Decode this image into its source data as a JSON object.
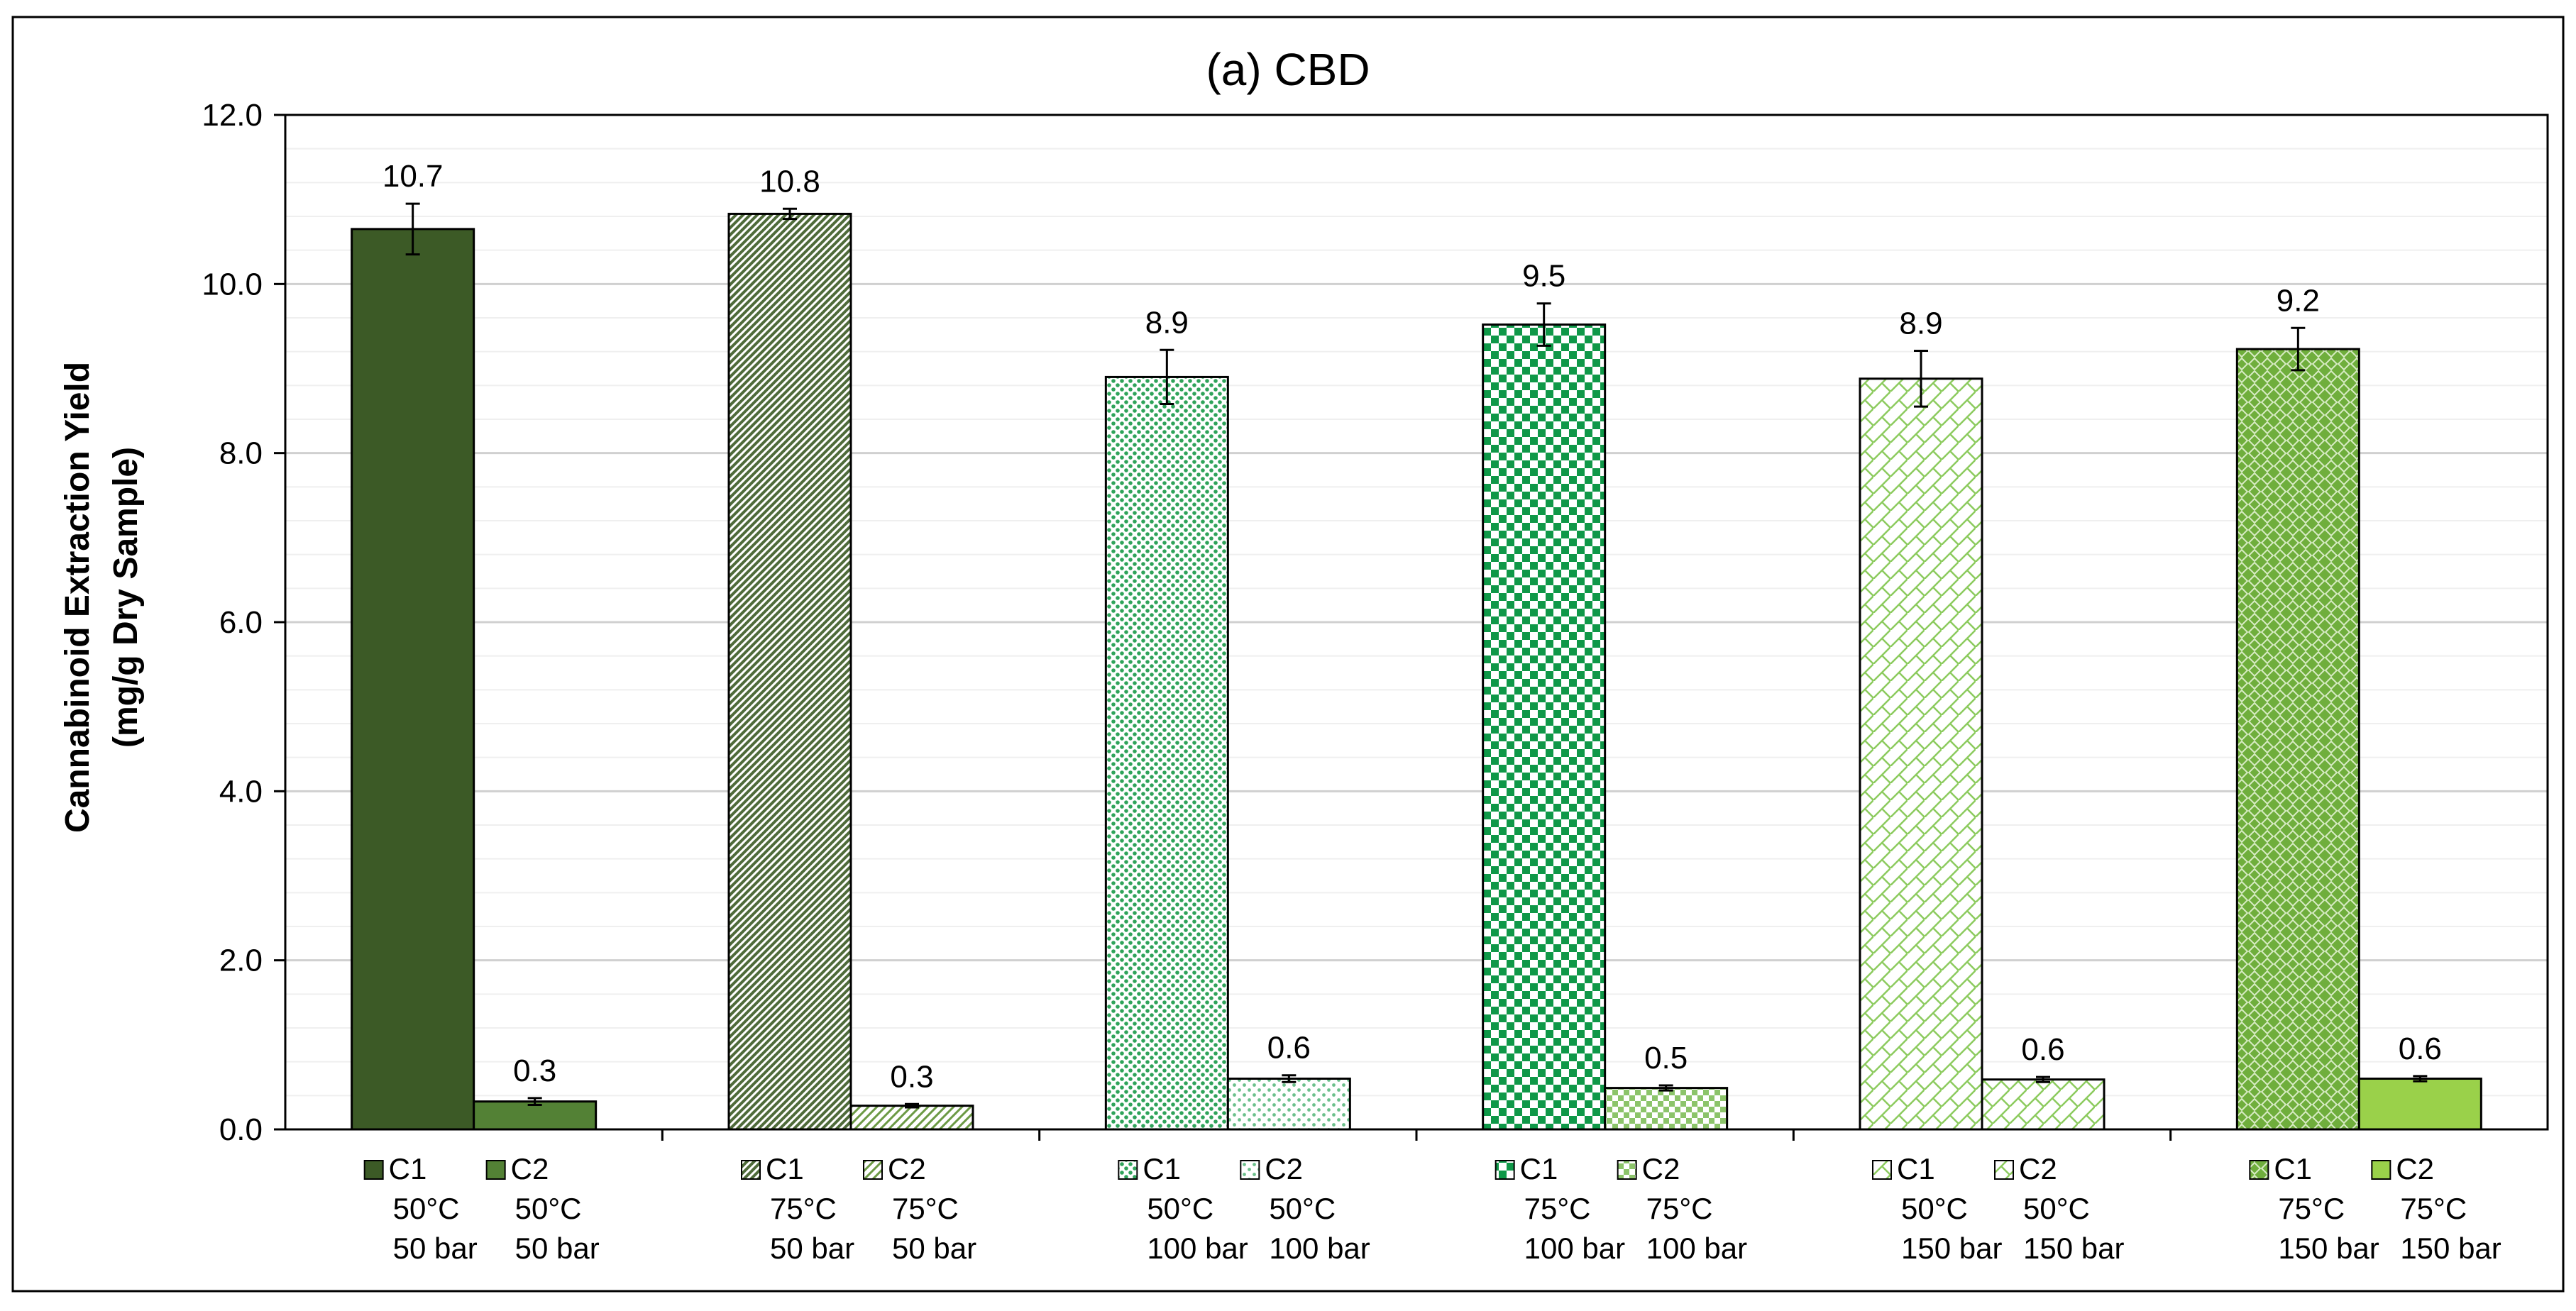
{
  "chart_data": {
    "type": "bar",
    "title": "(a) CBD",
    "ylabel_line1": "Cannabinoid Extraction Yield",
    "ylabel_line2": "(mg/g Dry Sample)",
    "ylim": [
      0,
      12
    ],
    "y_ticks": [
      "0.0",
      "2.0",
      "4.0",
      "6.0",
      "8.0",
      "10.0",
      "12.0"
    ],
    "grid": true,
    "groups": [
      {
        "bars": [
          {
            "label": [
              "C1",
              "50°C",
              "50 bar"
            ],
            "value": 10.65,
            "error": 0.3,
            "data_label": "10.7",
            "color": "#3c5a26",
            "pattern": "solid"
          },
          {
            "label": [
              "C2",
              "50°C",
              "50 bar"
            ],
            "value": 0.33,
            "error": 0.04,
            "data_label": "0.3",
            "color": "#538135",
            "pattern": "solid"
          }
        ]
      },
      {
        "bars": [
          {
            "label": [
              "C1",
              "75°C",
              "50 bar"
            ],
            "value": 10.83,
            "error": 0.06,
            "data_label": "10.8",
            "color": "#4f6b3a",
            "pattern": "diagonal-dense"
          },
          {
            "label": [
              "C2",
              "75°C",
              "50 bar"
            ],
            "value": 0.28,
            "error": 0.02,
            "data_label": "0.3",
            "color": "#6c9a45",
            "pattern": "diagonal-light"
          }
        ]
      },
      {
        "bars": [
          {
            "label": [
              "C1",
              "50°C",
              "100 bar"
            ],
            "value": 8.9,
            "error": 0.32,
            "data_label": "8.9",
            "color": "#2fa35a",
            "pattern": "dots-dense"
          },
          {
            "label": [
              "C2",
              "50°C",
              "100 bar"
            ],
            "value": 0.6,
            "error": 0.04,
            "data_label": "0.6",
            "color": "#6cc08b",
            "pattern": "dots-light"
          }
        ]
      },
      {
        "bars": [
          {
            "label": [
              "C1",
              "75°C",
              "100 bar"
            ],
            "value": 9.52,
            "error": 0.25,
            "data_label": "9.5",
            "color": "#0f9848",
            "pattern": "checker"
          },
          {
            "label": [
              "C2",
              "75°C",
              "100 bar"
            ],
            "value": 0.49,
            "error": 0.03,
            "data_label": "0.5",
            "color": "#8cc46a",
            "pattern": "checker-light"
          }
        ]
      },
      {
        "bars": [
          {
            "label": [
              "C1",
              "50°C",
              "150 bar"
            ],
            "value": 8.88,
            "error": 0.33,
            "data_label": "8.9",
            "color": "#8ccb5e",
            "pattern": "zigzag"
          },
          {
            "label": [
              "C2",
              "50°C",
              "150 bar"
            ],
            "value": 0.59,
            "error": 0.03,
            "data_label": "0.6",
            "color": "#8ccb5e",
            "pattern": "zigzag-light"
          }
        ]
      },
      {
        "bars": [
          {
            "label": [
              "C1",
              "75°C",
              "150 bar"
            ],
            "value": 9.23,
            "error": 0.25,
            "data_label": "9.2",
            "color": "#6fae3c",
            "pattern": "diamond"
          },
          {
            "label": [
              "C2",
              "75°C",
              "150 bar"
            ],
            "value": 0.6,
            "error": 0.03,
            "data_label": "0.6",
            "color": "#9ad14a",
            "pattern": "solid"
          }
        ]
      }
    ]
  }
}
